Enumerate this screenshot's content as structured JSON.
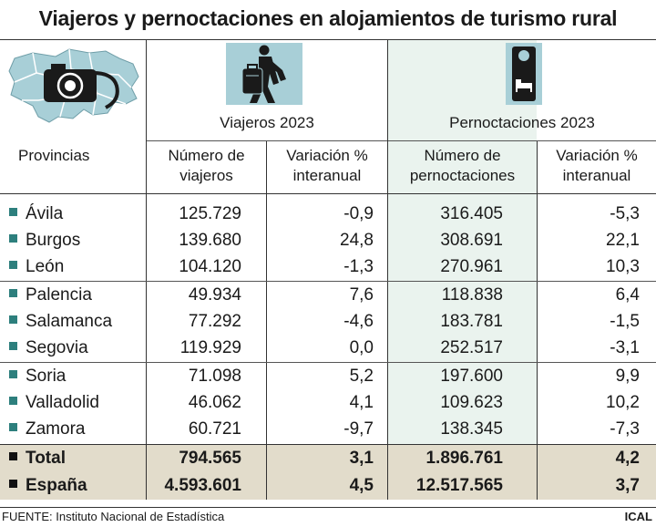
{
  "title": "Viajeros y pernoctaciones en alojamientos de turismo rural",
  "icons": {
    "map": "castilla-y-leon-map-with-camera-icon",
    "traveler": "traveler-with-suitcase-icon",
    "hotel": "do-not-disturb-door-hanger-icon",
    "map_color": "#a8cfd7",
    "accent": "#2d7f7d"
  },
  "headers": {
    "provincias": "Provincias",
    "viajeros_group": "Viajeros 2023",
    "pernoctaciones_group": "Pernoctaciones 2023",
    "num_viajeros_1": "Número de",
    "num_viajeros_2": "viajeros",
    "var_1": "Variación %",
    "var_2": "interanual",
    "num_pern_1": "Número de",
    "num_pern_2": "pernoctaciones",
    "var2_1": "Variación %",
    "var2_2": "interanual"
  },
  "rows": [
    {
      "name": "Ávila",
      "viajeros": "125.729",
      "var_viajeros": "-0,9",
      "pernoctaciones": "316.405",
      "var_pernoctaciones": "-5,3"
    },
    {
      "name": "Burgos",
      "viajeros": "139.680",
      "var_viajeros": "24,8",
      "pernoctaciones": "308.691",
      "var_pernoctaciones": "22,1"
    },
    {
      "name": "León",
      "viajeros": "104.120",
      "var_viajeros": "-1,3",
      "pernoctaciones": "270.961",
      "var_pernoctaciones": "10,3"
    },
    {
      "name": "Palencia",
      "viajeros": "49.934",
      "var_viajeros": "7,6",
      "pernoctaciones": "118.838",
      "var_pernoctaciones": "6,4"
    },
    {
      "name": "Salamanca",
      "viajeros": "77.292",
      "var_viajeros": "-4,6",
      "pernoctaciones": "183.781",
      "var_pernoctaciones": "-1,5"
    },
    {
      "name": "Segovia",
      "viajeros": "119.929",
      "var_viajeros": "0,0",
      "pernoctaciones": "252.517",
      "var_pernoctaciones": "-3,1"
    },
    {
      "name": "Soria",
      "viajeros": "71.098",
      "var_viajeros": "5,2",
      "pernoctaciones": "197.600",
      "var_pernoctaciones": "9,9"
    },
    {
      "name": "Valladolid",
      "viajeros": "46.062",
      "var_viajeros": "4,1",
      "pernoctaciones": "109.623",
      "var_pernoctaciones": "10,2"
    },
    {
      "name": "Zamora",
      "viajeros": "60.721",
      "var_viajeros": "-9,7",
      "pernoctaciones": "138.345",
      "var_pernoctaciones": "-7,3"
    }
  ],
  "totals": [
    {
      "name": "Total",
      "viajeros": "794.565",
      "var_viajeros": "3,1",
      "pernoctaciones": "1.896.761",
      "var_pernoctaciones": "4,2"
    },
    {
      "name": "España",
      "viajeros": "4.593.601",
      "var_viajeros": "4,5",
      "pernoctaciones": "12.517.565",
      "var_pernoctaciones": "3,7"
    }
  ],
  "footer": {
    "source": "FUENTE: Instituto Nacional de Estadística",
    "brand": "ICAL"
  }
}
